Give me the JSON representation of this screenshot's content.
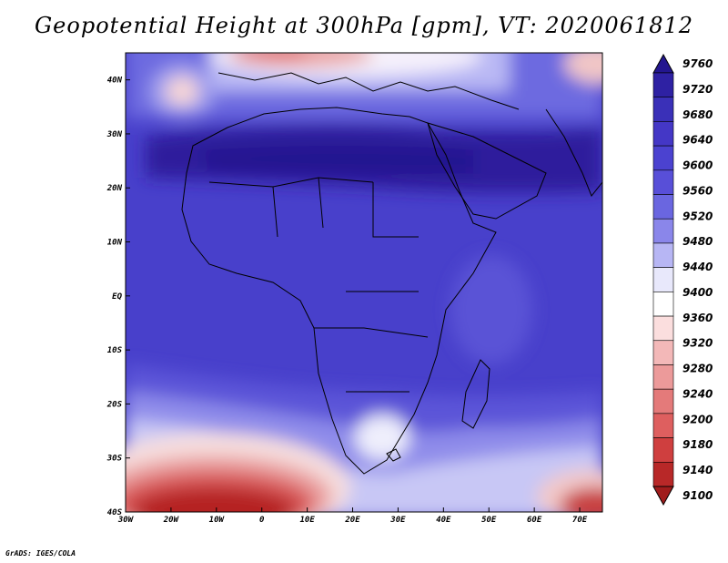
{
  "title": "Geopotential Height at 300hPa [gpm], VT: 2020061812",
  "credit": "GrADS: IGES/COLA",
  "map": {
    "lat_labels": [
      "40N",
      "30N",
      "20N",
      "10N",
      "EQ",
      "10S",
      "20S",
      "30S",
      "40S"
    ],
    "lon_labels": [
      "30W",
      "20W",
      "10W",
      "0",
      "10E",
      "20E",
      "30E",
      "40E",
      "50E",
      "60E",
      "70E"
    ],
    "lat_range": [
      -40,
      45
    ],
    "lon_range": [
      -30,
      75
    ]
  },
  "colorbar": {
    "labels": [
      "9760",
      "9720",
      "9680",
      "9640",
      "9600",
      "9560",
      "9520",
      "9480",
      "9440",
      "9400",
      "9360",
      "9320",
      "9280",
      "9240",
      "9200",
      "9180",
      "9140",
      "9100"
    ],
    "colors": [
      "#23168f",
      "#2e21a3",
      "#3a30b8",
      "#4437c6",
      "#4b42d0",
      "#584fd8",
      "#6a66e0",
      "#8a86ea",
      "#b7b6f4",
      "#e8e8fb",
      "#ffffff",
      "#fbdede",
      "#f3b8b8",
      "#ec9a9a",
      "#e47a7a",
      "#de5f5f",
      "#cf3f3f",
      "#b82828",
      "#a01c1c"
    ]
  }
}
